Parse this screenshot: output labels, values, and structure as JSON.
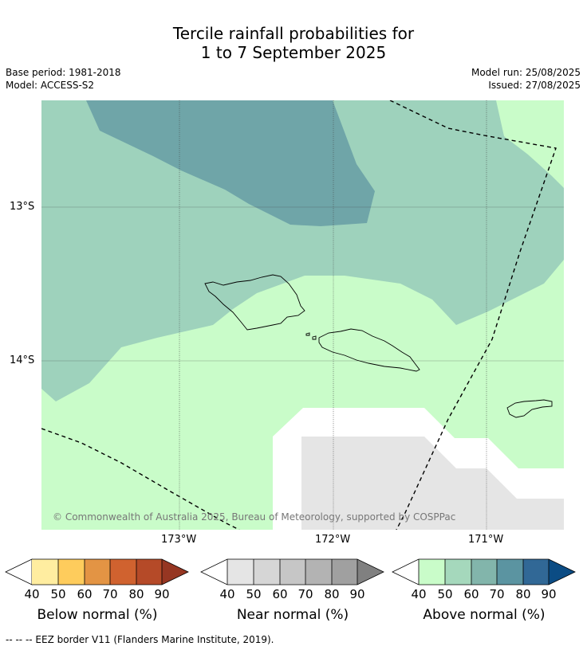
{
  "title": {
    "line1": "Tercile rainfall probabilities for",
    "line2": "1 to 7 September 2025"
  },
  "meta": {
    "base_period": "Base period: 1981-2018",
    "model": "Model: ACCESS-S2",
    "model_run": "Model run: 25/08/2025",
    "issued": "Issued: 27/08/2025"
  },
  "map": {
    "lat_labels": [
      "13°S",
      "14°S"
    ],
    "lon_labels": [
      "173°W",
      "172°W",
      "171°W"
    ],
    "copyright": "© Commonwealth of Australia 2025, Bureau of Meteorology, supported by COSPPac",
    "colors": {
      "above_50": "#c9fcc9",
      "above_60": "#9ed2bc",
      "above_70": "#6fa5a8",
      "near_40": "#e5e5e5",
      "white": "#ffffff"
    }
  },
  "colorbars": [
    {
      "label": "Below normal (%)",
      "ticks": [
        "40",
        "50",
        "60",
        "70",
        "80",
        "90"
      ],
      "colors": [
        "#ffeda0",
        "#fecc5c",
        "#e39444",
        "#d0622f",
        "#b54a28",
        "#963622"
      ]
    },
    {
      "label": "Near normal (%)",
      "ticks": [
        "40",
        "50",
        "60",
        "70",
        "80",
        "90"
      ],
      "colors": [
        "#e5e5e5",
        "#d6d6d6",
        "#c6c6c6",
        "#b3b3b3",
        "#a0a0a0",
        "#808080"
      ]
    },
    {
      "label": "Above normal (%)",
      "ticks": [
        "40",
        "50",
        "60",
        "70",
        "80",
        "90"
      ],
      "colors": [
        "#c9fcc9",
        "#a5d8bc",
        "#82b5ab",
        "#5b94a1",
        "#316896",
        "#0b4c84"
      ]
    }
  ],
  "footnote": "--  --  -- EEZ border V11 (Flanders Marine Institute, 2019)."
}
